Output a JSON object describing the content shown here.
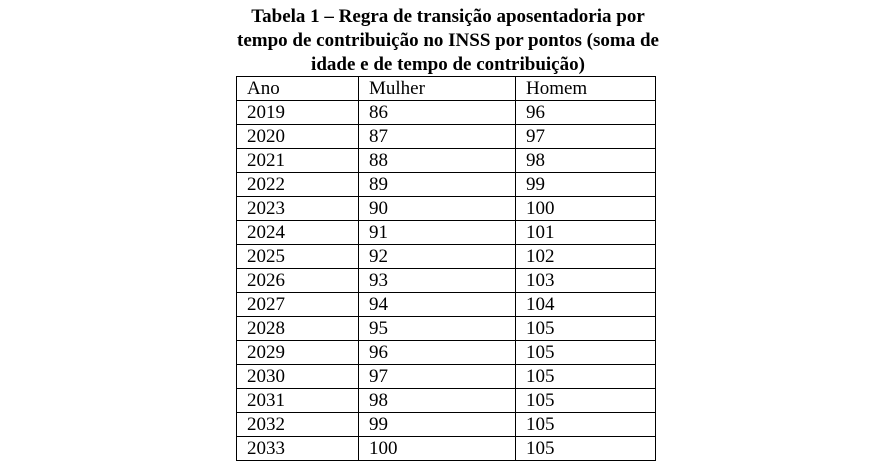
{
  "caption": {
    "lines": [
      "Tabela 1 – Regra de transição aposentadoria por",
      "tempo de contribuição no INSS por pontos (soma de",
      "idade e de tempo de contribuição)"
    ]
  },
  "table": {
    "headers": [
      "Ano",
      "Mulher",
      "Homem"
    ],
    "rows": [
      [
        "2019",
        "86",
        "96"
      ],
      [
        "2020",
        "87",
        "97"
      ],
      [
        "2021",
        "88",
        "98"
      ],
      [
        "2022",
        "89",
        "99"
      ],
      [
        "2023",
        "90",
        "100"
      ],
      [
        "2024",
        "91",
        "101"
      ],
      [
        "2025",
        "92",
        "102"
      ],
      [
        "2026",
        "93",
        "103"
      ],
      [
        "2027",
        "94",
        "104"
      ],
      [
        "2028",
        "95",
        "105"
      ],
      [
        "2029",
        "96",
        "105"
      ],
      [
        "2030",
        "97",
        "105"
      ],
      [
        "2031",
        "98",
        "105"
      ],
      [
        "2032",
        "99",
        "105"
      ],
      [
        "2033",
        "100",
        "105"
      ]
    ]
  }
}
